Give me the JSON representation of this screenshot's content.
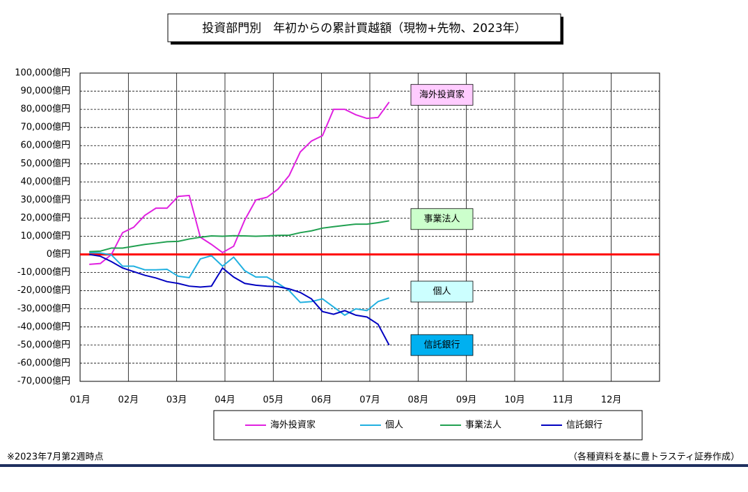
{
  "chart_data": {
    "type": "line",
    "title": "投資部門別　年初からの累計買越額（現物+先物、2023年）",
    "x": [
      1.19,
      1.42,
      1.65,
      1.88,
      2.11,
      2.34,
      2.57,
      2.8,
      3.03,
      3.26,
      3.49,
      3.72,
      3.95,
      4.18,
      4.41,
      4.64,
      4.87,
      5.1,
      5.33,
      5.56,
      5.79,
      6.02,
      6.25,
      6.48,
      6.71,
      6.94,
      7.17,
      7.4
    ],
    "series": [
      {
        "name": "海外投資家",
        "color": "#e020e0",
        "values": [
          -5500,
          -5000,
          0,
          12000,
          15000,
          21500,
          25500,
          25500,
          32000,
          32500,
          9500,
          5500,
          1000,
          4500,
          19000,
          30000,
          31500,
          36000,
          43500,
          56500,
          62500,
          65500,
          80000,
          80000,
          77000,
          75000,
          75500,
          84000
        ]
      },
      {
        "name": "個人",
        "color": "#20b0e0",
        "values": [
          1000,
          800,
          -300,
          -6500,
          -6500,
          -8500,
          -8500,
          -8200,
          -12000,
          -12800,
          -2500,
          -700,
          -6500,
          -1500,
          -9000,
          -12500,
          -12500,
          -16000,
          -20000,
          -26500,
          -26000,
          -24500,
          -29000,
          -33500,
          -30000,
          -31000,
          -26000,
          -24000
        ]
      },
      {
        "name": "事業法人",
        "color": "#20a050",
        "values": [
          1500,
          1800,
          3500,
          3500,
          4500,
          5500,
          6200,
          7000,
          7200,
          8500,
          9500,
          10200,
          10000,
          10300,
          10200,
          10000,
          10200,
          10500,
          10600,
          12000,
          13000,
          14500,
          15300,
          16000,
          16700,
          16700,
          17500,
          18500
        ]
      },
      {
        "name": "信託銀行",
        "color": "#0000c0",
        "values": [
          0,
          -1000,
          -4000,
          -7500,
          -9500,
          -11500,
          -13000,
          -15000,
          -16000,
          -17500,
          -18000,
          -17500,
          -7500,
          -12500,
          -16000,
          -17000,
          -17500,
          -17800,
          -19000,
          -21000,
          -24500,
          -31500,
          -33000,
          -31000,
          -33500,
          -34500,
          -38500,
          -50000
        ]
      }
    ],
    "annotations": [
      {
        "text": "海外投資家",
        "color": "#ffccff",
        "value": 88000
      },
      {
        "text": "事業法人",
        "color": "#ccffcc",
        "value": 19500
      },
      {
        "text": "個人",
        "color": "#ccffff",
        "value": -20500
      },
      {
        "text": "信託銀行",
        "color": "#00b0f0",
        "value": -50000
      }
    ],
    "xlim": [
      1,
      13
    ],
    "xticks": [
      {
        "value": 1,
        "label": "01月"
      },
      {
        "value": 2,
        "label": "02月"
      },
      {
        "value": 3,
        "label": "03月"
      },
      {
        "value": 4,
        "label": "04月"
      },
      {
        "value": 5,
        "label": "05月"
      },
      {
        "value": 6,
        "label": "06月"
      },
      {
        "value": 7,
        "label": "07月"
      },
      {
        "value": 8,
        "label": "08月"
      },
      {
        "value": 9,
        "label": "09月"
      },
      {
        "value": 10,
        "label": "10月"
      },
      {
        "value": 11,
        "label": "11月"
      },
      {
        "value": 12,
        "label": "12月"
      }
    ],
    "ylim": [
      -70000,
      100000
    ],
    "yticks": [
      {
        "value": 100000,
        "label": "100,000億円"
      },
      {
        "value": 90000,
        "label": "90,000億円"
      },
      {
        "value": 80000,
        "label": "80,000億円"
      },
      {
        "value": 70000,
        "label": "70,000億円"
      },
      {
        "value": 60000,
        "label": "60,000億円"
      },
      {
        "value": 50000,
        "label": "50,000億円"
      },
      {
        "value": 40000,
        "label": "40,000億円"
      },
      {
        "value": 30000,
        "label": "30,000億円"
      },
      {
        "value": 20000,
        "label": "20,000億円"
      },
      {
        "value": 10000,
        "label": "10,000億円"
      },
      {
        "value": 0,
        "label": "0億円"
      },
      {
        "value": -10000,
        "label": "-10,000億円"
      },
      {
        "value": -20000,
        "label": "-20,000億円"
      },
      {
        "value": -30000,
        "label": "-30,000億円"
      },
      {
        "value": -40000,
        "label": "-40,000億円"
      },
      {
        "value": -50000,
        "label": "-50,000億円"
      },
      {
        "value": -60000,
        "label": "-60,000億円"
      },
      {
        "value": -70000,
        "label": "-70,000億円"
      }
    ],
    "grid": true,
    "note": "※2023年7月第2週時点",
    "source": "（各種資料を基に豊トラスティ証券作成）"
  }
}
